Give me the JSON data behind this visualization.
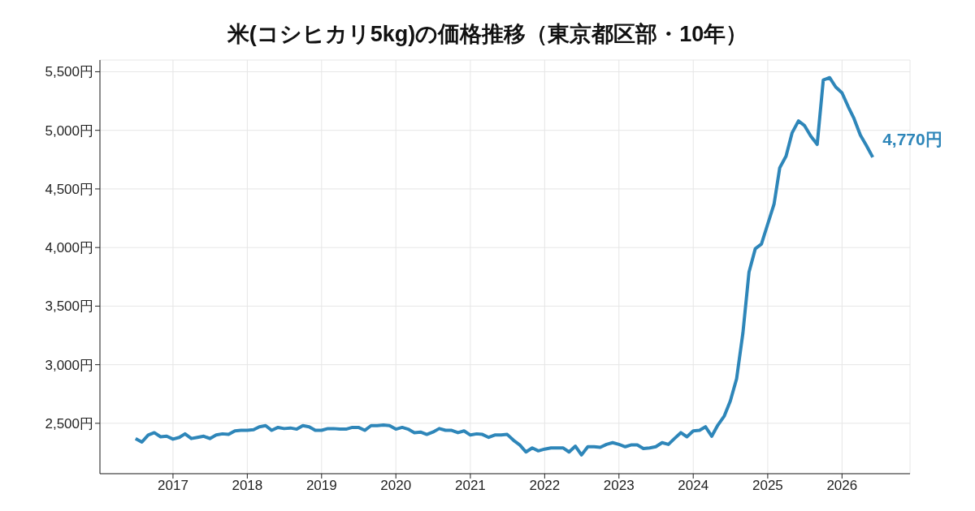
{
  "chart_data": {
    "type": "line",
    "title": "米(コシヒカリ5kg)の価格推移（東京都区部・10年）",
    "x": [
      "2016-07",
      "2016-08",
      "2016-09",
      "2016-10",
      "2016-11",
      "2016-12",
      "2017-01",
      "2017-02",
      "2017-03",
      "2017-04",
      "2017-05",
      "2017-06",
      "2017-07",
      "2017-08",
      "2017-09",
      "2017-10",
      "2017-11",
      "2017-12",
      "2018-01",
      "2018-02",
      "2018-03",
      "2018-04",
      "2018-05",
      "2018-06",
      "2018-07",
      "2018-08",
      "2018-09",
      "2018-10",
      "2018-11",
      "2018-12",
      "2019-01",
      "2019-02",
      "2019-03",
      "2019-04",
      "2019-05",
      "2019-06",
      "2019-07",
      "2019-08",
      "2019-09",
      "2019-10",
      "2019-11",
      "2019-12",
      "2020-01",
      "2020-02",
      "2020-03",
      "2020-04",
      "2020-05",
      "2020-06",
      "2020-07",
      "2020-08",
      "2020-09",
      "2020-10",
      "2020-11",
      "2020-12",
      "2021-01",
      "2021-02",
      "2021-03",
      "2021-04",
      "2021-05",
      "2021-06",
      "2021-07",
      "2021-08",
      "2021-09",
      "2021-10",
      "2021-11",
      "2021-12",
      "2022-01",
      "2022-02",
      "2022-03",
      "2022-04",
      "2022-05",
      "2022-06",
      "2022-07",
      "2022-08",
      "2022-09",
      "2022-10",
      "2022-11",
      "2022-12",
      "2023-01",
      "2023-02",
      "2023-03",
      "2023-04",
      "2023-05",
      "2023-06",
      "2023-07",
      "2023-08",
      "2023-09",
      "2023-10",
      "2023-11",
      "2023-12",
      "2024-01",
      "2024-02",
      "2024-03",
      "2024-04",
      "2024-05",
      "2024-06",
      "2024-07",
      "2024-08",
      "2024-09",
      "2024-10",
      "2024-11",
      "2024-12",
      "2025-01",
      "2025-02",
      "2025-03",
      "2025-04",
      "2025-05",
      "2025-06",
      "2025-07",
      "2025-08",
      "2025-09",
      "2025-10",
      "2025-11",
      "2025-12",
      "2026-01",
      "2026-02",
      "2026-03",
      "2026-04",
      "2026-05",
      "2026-06"
    ],
    "series": [
      {
        "color": "#2e86b9",
        "values": [
          2370,
          2340,
          2400,
          2420,
          2385,
          2390,
          2365,
          2380,
          2410,
          2370,
          2380,
          2390,
          2370,
          2400,
          2410,
          2405,
          2435,
          2440,
          2440,
          2445,
          2470,
          2480,
          2440,
          2465,
          2455,
          2460,
          2450,
          2480,
          2470,
          2440,
          2440,
          2455,
          2455,
          2450,
          2450,
          2465,
          2465,
          2440,
          2480,
          2480,
          2485,
          2480,
          2450,
          2465,
          2450,
          2420,
          2425,
          2405,
          2425,
          2455,
          2440,
          2440,
          2420,
          2435,
          2400,
          2410,
          2405,
          2380,
          2400,
          2400,
          2405,
          2355,
          2315,
          2255,
          2290,
          2265,
          2280,
          2290,
          2290,
          2290,
          2255,
          2305,
          2230,
          2300,
          2300,
          2295,
          2320,
          2335,
          2320,
          2300,
          2315,
          2315,
          2285,
          2290,
          2300,
          2335,
          2320,
          2370,
          2420,
          2385,
          2435,
          2440,
          2470,
          2390,
          2485,
          2560,
          2690,
          2880,
          3270,
          3790,
          3990,
          4030,
          4200,
          4370,
          4680,
          4780,
          4980,
          5080,
          5040,
          4950,
          4880,
          5430,
          5450,
          5370,
          5320,
          5200,
          5100,
          4960,
          4870,
          4770
        ]
      }
    ],
    "xlim": [
      "2016-01-08",
      "2026-12-01"
    ],
    "xticks": [
      "2017",
      "2018",
      "2019",
      "2020",
      "2021",
      "2022",
      "2023",
      "2024",
      "2025",
      "2026"
    ],
    "ylim": [
      2070,
      5600
    ],
    "yticks": [
      {
        "value": 2500,
        "label": "2,500円"
      },
      {
        "value": 3000,
        "label": "3,000円"
      },
      {
        "value": 3500,
        "label": "3,500円"
      },
      {
        "value": 4000,
        "label": "4,000円"
      },
      {
        "value": 4500,
        "label": "4,500円"
      },
      {
        "value": 5000,
        "label": "5,000円"
      },
      {
        "value": 5500,
        "label": "5,500円"
      }
    ],
    "grid": true,
    "marker": "none",
    "line_style": "solid",
    "annotations": [
      {
        "text": "4,770円",
        "x": "2026-06",
        "y": 4770
      }
    ]
  }
}
